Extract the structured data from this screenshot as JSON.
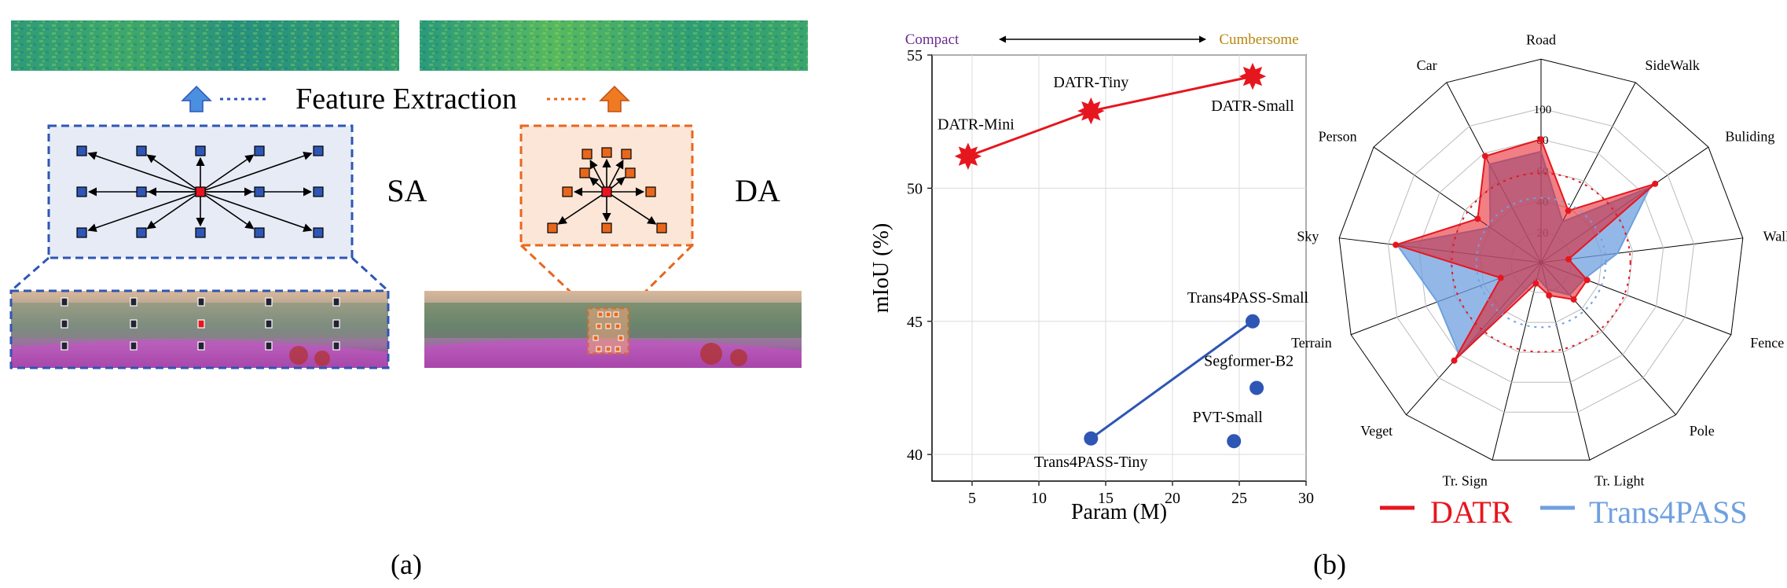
{
  "panel_a": {
    "label": "(a)",
    "feature_extraction": "Feature Extraction",
    "sa_label": "SA",
    "da_label": "DA"
  },
  "panel_b": {
    "label": "(b)",
    "compact": "Compact",
    "cumbersome": "Cumbersome"
  },
  "colors": {
    "blue": "#2e56b4",
    "orange": "#e8671c",
    "red": "#e6161e",
    "light_blue": "#6fa0e0",
    "sa_fill": "#e6ebf6",
    "da_fill": "#fbe6d8"
  },
  "chart_data": [
    {
      "type": "scatter",
      "xlabel": "Param (M)",
      "ylabel": "mIoU (%)",
      "xlim": [
        2,
        30
      ],
      "ylim": [
        39,
        55
      ],
      "xticks": [
        5,
        10,
        15,
        20,
        25,
        30
      ],
      "yticks": [
        40,
        45,
        50,
        55
      ],
      "grid": true,
      "series": [
        {
          "marker": "star",
          "color": "#e6161e",
          "connected": true,
          "points": [
            {
              "label": "DATR-Mini",
              "x": 4.7,
              "y": 51.2
            },
            {
              "label": "DATR-Tiny",
              "x": 13.9,
              "y": 52.9
            },
            {
              "label": "DATR-Small",
              "x": 26.0,
              "y": 54.2
            }
          ]
        },
        {
          "marker": "circle",
          "color": "#2e56b4",
          "connected": true,
          "points": [
            {
              "label": "Trans4PASS-Tiny",
              "x": 13.9,
              "y": 40.6
            },
            {
              "label": "Trans4PASS-Small",
              "x": 26.0,
              "y": 45.0
            }
          ]
        },
        {
          "marker": "circle",
          "color": "#2e56b4",
          "connected": false,
          "points": [
            {
              "label": "Segformer-B2",
              "x": 26.3,
              "y": 42.5
            },
            {
              "label": "PVT-Small",
              "x": 24.6,
              "y": 40.5
            }
          ]
        }
      ]
    },
    {
      "type": "radar",
      "categories": [
        "Road",
        "SideWalk",
        "Buliding",
        "Wall",
        "Fence",
        "Pole",
        "Tr. Light",
        "Tr. Sign",
        "Veget",
        "Terrain",
        "Sky",
        "Person",
        "Car"
      ],
      "rlim": [
        0,
        100
      ],
      "rticks": [
        20,
        40,
        60,
        80,
        100
      ],
      "series": [
        {
          "name": "DATR",
          "color": "#e6161e",
          "values": [
            80,
            38,
            90,
            18,
            32,
            32,
            22,
            14,
            85,
            28,
            95,
            50,
            78
          ]
        },
        {
          "name": "Trans4PASS",
          "color": "#6fa0e0",
          "values": [
            72,
            30,
            86,
            50,
            30,
            28,
            18,
            10,
            80,
            72,
            94,
            40,
            72
          ]
        }
      ]
    }
  ]
}
